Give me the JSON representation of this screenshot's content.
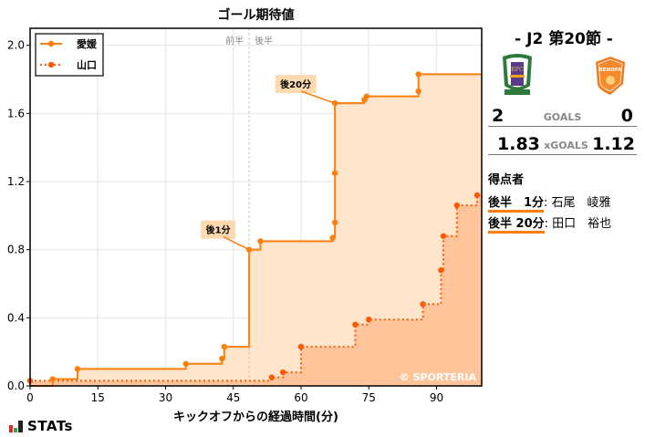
{
  "chart_data": {
    "type": "line",
    "subtype": "step",
    "title": "ゴール期待値",
    "xlabel": "キックオフからの経過時間(分)",
    "ylabel": "",
    "xlim": [
      0,
      100
    ],
    "ylim": [
      0,
      2.1
    ],
    "x_ticks": [
      0,
      15,
      30,
      45,
      60,
      75,
      90
    ],
    "y_ticks": [
      "0.0",
      "0.4",
      "0.8",
      "1.2",
      "1.6",
      "2.0"
    ],
    "grid": true,
    "legend_position": "upper left",
    "half_time_marker": {
      "x": 48.5,
      "labels": [
        "前半",
        "後半"
      ]
    },
    "watermark": "© SPORTERIA",
    "series": [
      {
        "name": "愛媛",
        "color": "#ff7f0e",
        "line_style": "solid",
        "points": [
          [
            0,
            0.0
          ],
          [
            5,
            0.04
          ],
          [
            10.5,
            0.1
          ],
          [
            34.5,
            0.13
          ],
          [
            42.5,
            0.16
          ],
          [
            43,
            0.23
          ],
          [
            48.5,
            0.8
          ],
          [
            51,
            0.85
          ],
          [
            67,
            0.87
          ],
          [
            67.5,
            0.96
          ],
          [
            67.5,
            1.25
          ],
          [
            67.5,
            1.66
          ],
          [
            74,
            1.68
          ],
          [
            74.5,
            1.7
          ],
          [
            86,
            1.73
          ],
          [
            86,
            1.83
          ],
          [
            100,
            1.83
          ]
        ]
      },
      {
        "name": "山口",
        "color": "#fc5a04",
        "line_style": "dotted",
        "points": [
          [
            0,
            0.03
          ],
          [
            53.5,
            0.05
          ],
          [
            56,
            0.08
          ],
          [
            60,
            0.23
          ],
          [
            72,
            0.36
          ],
          [
            75,
            0.39
          ],
          [
            87,
            0.48
          ],
          [
            91,
            0.68
          ],
          [
            91.5,
            0.88
          ],
          [
            94.5,
            1.06
          ],
          [
            99,
            1.12
          ],
          [
            100,
            1.12
          ]
        ]
      }
    ],
    "annotations": [
      {
        "text": "後1分",
        "x": 48.5,
        "y": 0.8
      },
      {
        "text": "後20分",
        "x": 67.5,
        "y": 1.66
      }
    ]
  },
  "legend": {
    "home": "愛媛",
    "away": "山口"
  },
  "half_labels": {
    "first": "前半",
    "second": "後半"
  },
  "watermark": "© SPORTERIA",
  "annotations": {
    "goal1": "後1分",
    "goal2": "後20分"
  },
  "match": {
    "round": "-  J2 第20節  -",
    "home_goals": "2",
    "away_goals": "0",
    "goals_label": "GOALS",
    "home_xg": "1.83",
    "away_xg": "1.12",
    "xg_label": "xGOALS",
    "home_logo": "ehime-fc-crest-icon",
    "away_logo": "renofa-yamaguchi-crest-icon"
  },
  "scorers": {
    "title": "得点者",
    "items": [
      {
        "time": "後半　1分",
        "name": ": 石尾　崚雅"
      },
      {
        "time": "後半 20分",
        "name": ": 田口　裕也"
      }
    ]
  },
  "branding": {
    "stats_logo": "STATs"
  },
  "colors": {
    "home": "#ff7f0e",
    "away": "#fc5a04",
    "home_fill": "#ffe5cc",
    "away_fill": "#ffc49a"
  }
}
